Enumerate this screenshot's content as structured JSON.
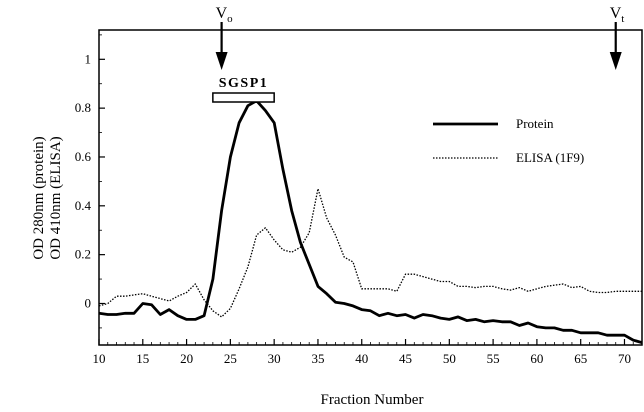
{
  "chart_data": {
    "type": "line",
    "xlabel": "Fraction Number",
    "ylabel_line1": "OD 280nm (protein)",
    "ylabel_line2": "OD 410nm (ELISA)",
    "xlim": [
      10,
      72
    ],
    "ylim": [
      -0.17,
      1.12
    ],
    "x_ticks": [
      10,
      15,
      20,
      25,
      30,
      35,
      40,
      45,
      50,
      55,
      60,
      65,
      70
    ],
    "y_ticks": [
      -0.0,
      0.2,
      0.4,
      0.6,
      0.8,
      1.0
    ],
    "y_tick_labels": [
      "0",
      "0.2",
      "0.4",
      "0.6",
      "0.8",
      "1"
    ],
    "grid": false,
    "legend_position": "right",
    "series": [
      {
        "name": "Protein",
        "style": "solid",
        "x": [
          10,
          11,
          12,
          13,
          14,
          15,
          16,
          17,
          18,
          19,
          20,
          21,
          22,
          23,
          24,
          25,
          26,
          27,
          28,
          29,
          30,
          31,
          32,
          33,
          34,
          35,
          36,
          37,
          38,
          39,
          40,
          41,
          42,
          43,
          44,
          45,
          46,
          47,
          48,
          49,
          50,
          51,
          52,
          53,
          54,
          55,
          56,
          57,
          58,
          59,
          60,
          61,
          62,
          63,
          64,
          65,
          66,
          67,
          68,
          69,
          70,
          71,
          72
        ],
        "values": [
          -0.04,
          -0.045,
          -0.045,
          -0.04,
          -0.04,
          0.0,
          -0.005,
          -0.045,
          -0.025,
          -0.05,
          -0.065,
          -0.065,
          -0.05,
          0.1,
          0.38,
          0.6,
          0.74,
          0.81,
          0.83,
          0.79,
          0.74,
          0.55,
          0.38,
          0.25,
          0.16,
          0.07,
          0.04,
          0.005,
          0.0,
          -0.01,
          -0.025,
          -0.03,
          -0.05,
          -0.04,
          -0.05,
          -0.045,
          -0.06,
          -0.045,
          -0.05,
          -0.06,
          -0.065,
          -0.055,
          -0.07,
          -0.065,
          -0.075,
          -0.07,
          -0.075,
          -0.075,
          -0.09,
          -0.08,
          -0.095,
          -0.1,
          -0.1,
          -0.11,
          -0.11,
          -0.12,
          -0.12,
          -0.12,
          -0.13,
          -0.13,
          -0.13,
          -0.15,
          -0.16
        ]
      },
      {
        "name": "ELISA (1F9)",
        "style": "dotted",
        "x": [
          10,
          11,
          12,
          13,
          14,
          15,
          16,
          17,
          18,
          19,
          20,
          21,
          22,
          23,
          24,
          25,
          26,
          27,
          28,
          29,
          30,
          31,
          32,
          33,
          34,
          35,
          36,
          37,
          38,
          39,
          40,
          41,
          42,
          43,
          44,
          45,
          46,
          47,
          48,
          49,
          50,
          51,
          52,
          53,
          54,
          55,
          56,
          57,
          58,
          59,
          60,
          61,
          62,
          63,
          64,
          65,
          66,
          67,
          68,
          69,
          70,
          71,
          72
        ],
        "values": [
          -0.01,
          0.0,
          0.03,
          0.03,
          0.035,
          0.04,
          0.03,
          0.02,
          0.01,
          0.03,
          0.045,
          0.08,
          0.015,
          -0.03,
          -0.055,
          -0.02,
          0.06,
          0.15,
          0.28,
          0.31,
          0.26,
          0.22,
          0.21,
          0.23,
          0.29,
          0.47,
          0.35,
          0.28,
          0.19,
          0.17,
          0.06,
          0.06,
          0.06,
          0.06,
          0.05,
          0.12,
          0.12,
          0.11,
          0.1,
          0.09,
          0.09,
          0.07,
          0.07,
          0.065,
          0.07,
          0.07,
          0.06,
          0.055,
          0.065,
          0.05,
          0.06,
          0.07,
          0.075,
          0.08,
          0.065,
          0.07,
          0.05,
          0.045,
          0.045,
          0.05,
          0.05,
          0.05,
          0.05
        ]
      }
    ],
    "annotations": {
      "vo": {
        "label_main": "V",
        "label_sub": "o",
        "x": 24
      },
      "vt": {
        "label_main": "V",
        "label_sub": "t",
        "x": 69
      },
      "band": {
        "label": "SGSP1",
        "x_start": 23,
        "x_end": 30
      }
    }
  }
}
